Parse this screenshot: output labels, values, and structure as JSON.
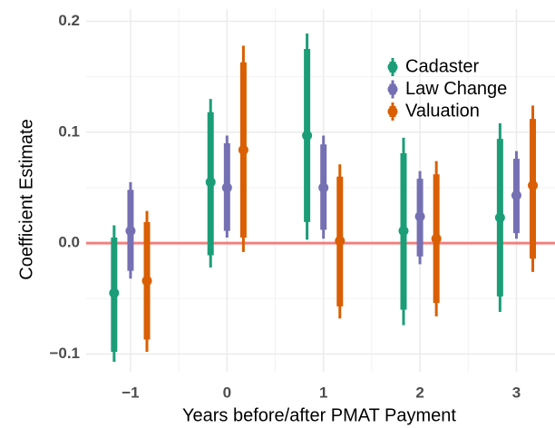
{
  "chart_data": {
    "type": "coefficient",
    "x_label": "Years before/after PMAT Payment",
    "y_label": "Coefficient Estimate",
    "x": [
      -1,
      0,
      1,
      2,
      3
    ],
    "xlim": [
      -1.46,
      3.4
    ],
    "ylim": [
      -0.116,
      0.211
    ],
    "xticks": [
      {
        "value": -1,
        "label": "−1"
      },
      0,
      1,
      2,
      3
    ],
    "yticks": [
      {
        "value": -0.1,
        "label": "−0.1"
      },
      {
        "value": 0,
        "label": "0.0"
      },
      0.1,
      0.2
    ],
    "grid": true,
    "legend_position": "top-right",
    "reference_line": {
      "value": 0,
      "color": "#f08080"
    },
    "series": [
      {
        "name": "Cadaster",
        "color": "#1b9e77",
        "values": [
          -0.045,
          0.055,
          0.097,
          0.011,
          0.023
        ],
        "inner_low": [
          -0.098,
          -0.011,
          0.019,
          -0.06,
          -0.048
        ],
        "inner_high": [
          0.005,
          0.118,
          0.175,
          0.081,
          0.094
        ],
        "outer_low": [
          -0.107,
          -0.022,
          0.003,
          -0.074,
          -0.062
        ],
        "outer_high": [
          0.016,
          0.13,
          0.189,
          0.095,
          0.108
        ]
      },
      {
        "name": "Law Change",
        "color": "#7570b3",
        "values": [
          0.011,
          0.05,
          0.05,
          0.024,
          0.043
        ],
        "inner_low": [
          -0.025,
          0.011,
          0.012,
          -0.012,
          0.009
        ],
        "inner_high": [
          0.048,
          0.09,
          0.089,
          0.058,
          0.076
        ],
        "outer_low": [
          -0.032,
          0.005,
          0.004,
          -0.019,
          0.004
        ],
        "outer_high": [
          0.055,
          0.097,
          0.097,
          0.065,
          0.083
        ]
      },
      {
        "name": "Valuation",
        "color": "#d95f02",
        "values": [
          -0.034,
          0.084,
          0.002,
          0.004,
          0.052
        ],
        "inner_low": [
          -0.087,
          0.005,
          -0.057,
          -0.054,
          -0.014
        ],
        "inner_high": [
          0.019,
          0.163,
          0.06,
          0.062,
          0.112
        ],
        "outer_low": [
          -0.098,
          -0.008,
          -0.068,
          -0.066,
          -0.026
        ],
        "outer_high": [
          0.029,
          0.178,
          0.071,
          0.074,
          0.124
        ]
      }
    ]
  }
}
